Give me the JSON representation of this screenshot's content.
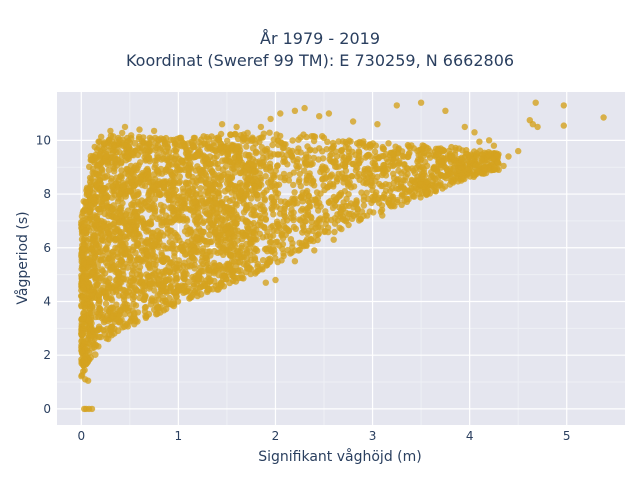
{
  "chart_data": {
    "type": "scatter",
    "title": "År 1979 - 2019",
    "subtitle": "Koordinat (Sweref 99 TM): E 730259, N 6662806",
    "xlabel": "Signifikant våghöjd (m)",
    "ylabel": "Vågperiod (s)",
    "xlim": [
      -0.25,
      5.6
    ],
    "ylim": [
      -0.6,
      11.8
    ],
    "x_ticks": [
      0,
      1,
      2,
      3,
      4,
      5
    ],
    "y_ticks": [
      0,
      2,
      4,
      6,
      8,
      10
    ],
    "grid": true,
    "marker_color": "#d4a21f",
    "background_color": "#e5e6ef",
    "band_points": [
      {
        "x": 0.0,
        "y_low": 1.1,
        "y_high": 7.2
      },
      {
        "x": 0.1,
        "y_low": 1.8,
        "y_high": 9.5
      },
      {
        "x": 0.2,
        "y_low": 2.3,
        "y_high": 10.2
      },
      {
        "x": 0.4,
        "y_low": 2.9,
        "y_high": 10.3
      },
      {
        "x": 0.7,
        "y_low": 3.4,
        "y_high": 10.1
      },
      {
        "x": 1.0,
        "y_low": 3.9,
        "y_high": 10.1
      },
      {
        "x": 1.3,
        "y_low": 4.3,
        "y_high": 10.2
      },
      {
        "x": 1.6,
        "y_low": 4.7,
        "y_high": 10.3
      },
      {
        "x": 2.0,
        "y_low": 5.4,
        "y_high": 10.3
      },
      {
        "x": 2.4,
        "y_low": 6.2,
        "y_high": 10.2
      },
      {
        "x": 2.8,
        "y_low": 6.9,
        "y_high": 10.0
      },
      {
        "x": 3.2,
        "y_low": 7.5,
        "y_high": 9.9
      },
      {
        "x": 3.6,
        "y_low": 8.0,
        "y_high": 9.8
      },
      {
        "x": 4.0,
        "y_low": 8.6,
        "y_high": 9.7
      },
      {
        "x": 4.3,
        "y_low": 8.9,
        "y_high": 9.5
      }
    ],
    "outlier_points": [
      [
        5.38,
        10.85
      ],
      [
        4.97,
        11.3
      ],
      [
        4.97,
        10.55
      ],
      [
        4.68,
        11.4
      ],
      [
        4.7,
        10.5
      ],
      [
        4.65,
        10.6
      ],
      [
        4.62,
        10.75
      ],
      [
        4.5,
        9.6
      ],
      [
        4.25,
        9.8
      ],
      [
        4.2,
        10.0
      ],
      [
        4.05,
        10.3
      ],
      [
        3.95,
        10.5
      ],
      [
        3.75,
        11.1
      ],
      [
        3.5,
        11.4
      ],
      [
        3.25,
        11.3
      ],
      [
        3.05,
        10.6
      ],
      [
        2.8,
        10.7
      ],
      [
        2.55,
        11.0
      ],
      [
        2.3,
        11.2
      ],
      [
        2.2,
        11.1
      ],
      [
        2.45,
        10.9
      ],
      [
        2.05,
        11.0
      ],
      [
        1.95,
        10.8
      ],
      [
        1.85,
        10.5
      ],
      [
        0.05,
        0.0
      ],
      [
        0.08,
        0.0
      ],
      [
        0.11,
        0.0
      ],
      [
        0.03,
        0.0
      ],
      [
        0.02,
        1.4
      ],
      [
        0.04,
        1.1
      ],
      [
        0.07,
        1.05
      ],
      [
        0.3,
        10.35
      ],
      [
        0.45,
        10.5
      ],
      [
        0.6,
        10.4
      ],
      [
        0.75,
        10.35
      ],
      [
        1.45,
        10.6
      ],
      [
        1.6,
        10.5
      ],
      [
        2.6,
        6.3
      ],
      [
        2.4,
        5.9
      ],
      [
        2.2,
        5.5
      ],
      [
        2.0,
        4.8
      ],
      [
        1.9,
        4.7
      ],
      [
        3.1,
        7.2
      ],
      [
        3.3,
        7.6
      ],
      [
        3.55,
        8.0
      ],
      [
        4.05,
        8.7
      ],
      [
        4.15,
        8.95
      ],
      [
        4.4,
        9.4
      ],
      [
        4.35,
        9.05
      ],
      [
        4.1,
        9.95
      ]
    ]
  }
}
